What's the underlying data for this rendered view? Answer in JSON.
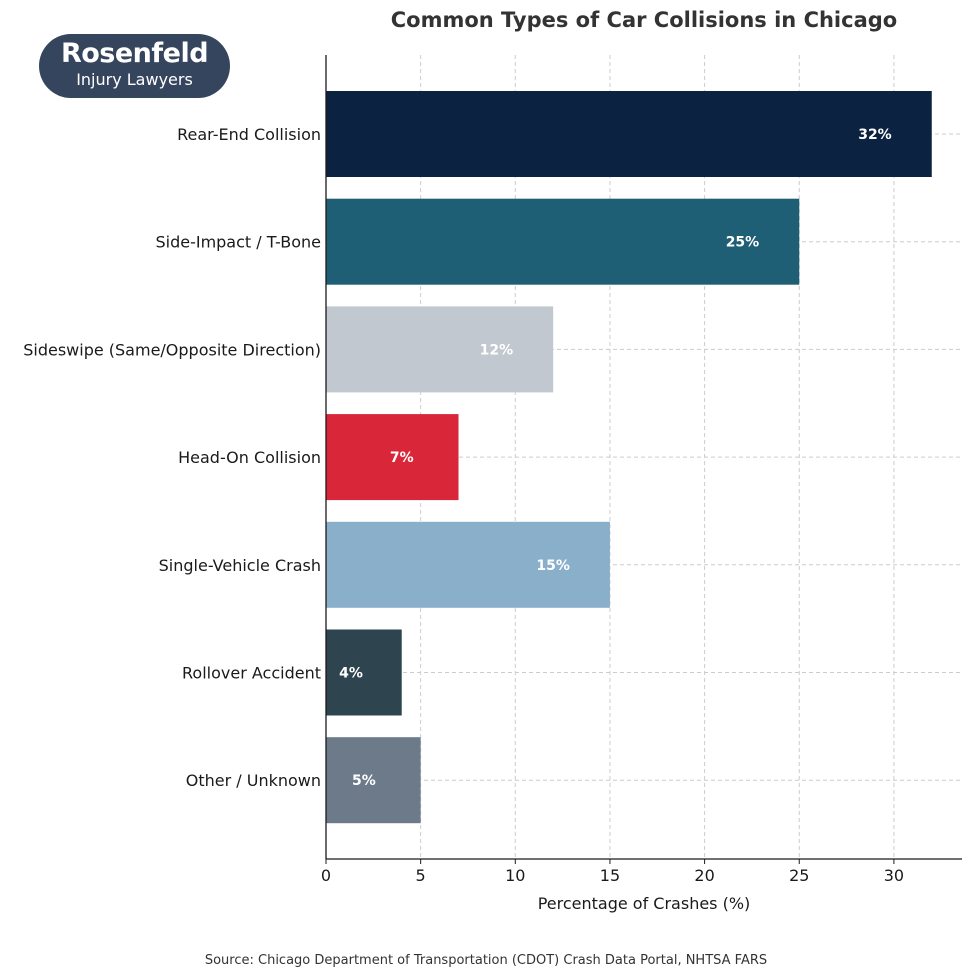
{
  "logo": {
    "text_top": "Rosenfeld",
    "text_bottom": "Injury Lawyers"
  },
  "source_note": "Source: Chicago Department of Transportation (CDOT) Crash Data Portal, NHTSA FARS",
  "chart_data": {
    "type": "bar",
    "orientation": "horizontal",
    "title": "Common Types of Car Collisions in Chicago",
    "xlabel": "Percentage of Crashes (%)",
    "ylabel": "",
    "xlim": [
      0,
      33.6
    ],
    "xticks": [
      0,
      5,
      10,
      15,
      20,
      25,
      30
    ],
    "grid": true,
    "categories": [
      "Rear-End Collision",
      "Side-Impact / T-Bone",
      "Sideswipe (Same/Opposite Direction)",
      "Head-On Collision",
      "Single-Vehicle Crash",
      "Rollover Accident",
      "Other / Unknown"
    ],
    "values": [
      32,
      25,
      12,
      7,
      15,
      4,
      5
    ],
    "value_labels": [
      "32%",
      "25%",
      "12%",
      "7%",
      "15%",
      "4%",
      "5%"
    ],
    "colors": [
      "#0b2341",
      "#1f5f75",
      "#c1c8d0",
      "#d92638",
      "#8aafcb",
      "#2e444f",
      "#6c7a89"
    ]
  }
}
